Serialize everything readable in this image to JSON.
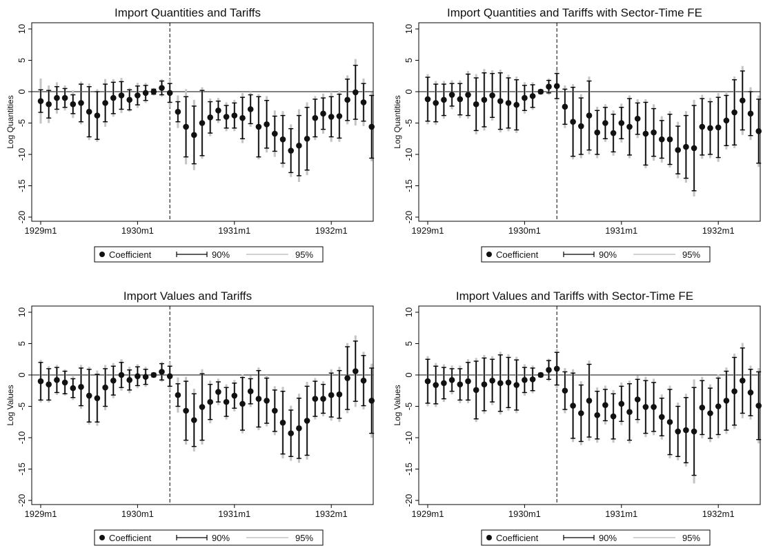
{
  "chart_data": [
    {
      "type": "scatter",
      "title": "Import Quantities and Tariffs",
      "ylabel": "Log Quantities",
      "ylim": [
        -20,
        10
      ],
      "yticks": [
        "10",
        "5",
        "0",
        "-5",
        "-10",
        "-15",
        "-20"
      ],
      "xtick_labels": [
        "1929m1",
        "1930m1",
        "1931m1",
        "1932m1"
      ],
      "event_line_index": 16,
      "zero_line": true,
      "legend": {
        "position": "bottom",
        "items": [
          "Coefficient",
          "90%",
          "95%"
        ]
      },
      "coefficients": [
        -1.5,
        -2.0,
        -1.0,
        -1.0,
        -2.0,
        -1.8,
        -3.2,
        -3.8,
        -1.8,
        -1.0,
        -0.6,
        -1.3,
        -0.6,
        -0.2,
        0.0,
        0.6,
        -0.2,
        -3.2,
        -5.6,
        -6.9,
        -5.0,
        -4.1,
        -3.0,
        -4.0,
        -3.8,
        -4.2,
        -2.8,
        -5.6,
        -5.2,
        -6.7,
        -7.6,
        -9.4,
        -8.6,
        -7.5,
        -4.2,
        -3.5,
        -4.0,
        -3.9,
        -1.3,
        -0.1,
        -1.7,
        -5.6
      ],
      "ci90": [
        1.8,
        2.2,
        1.8,
        1.5,
        1.5,
        3.0,
        4.0,
        3.8,
        3.0,
        2.5,
        2.2,
        1.6,
        1.5,
        1.2,
        0.4,
        1.1,
        1.5,
        1.6,
        4.8,
        4.6,
        5.2,
        2.5,
        1.5,
        1.8,
        2.0,
        3.3,
        2.3,
        4.8,
        3.8,
        2.8,
        3.8,
        3.5,
        4.8,
        5.0,
        3.0,
        2.5,
        3.2,
        3.5,
        3.3,
        4.3,
        3.0,
        5.0
      ],
      "ci95": [
        3.6,
        3.0,
        2.5,
        2.0,
        2.2,
        3.4,
        4.5,
        4.2,
        3.8,
        3.0,
        2.8,
        1.9,
        2.0,
        1.6,
        0.6,
        1.4,
        2.3,
        2.6,
        6.0,
        5.6,
        5.7,
        3.0,
        2.0,
        2.3,
        2.5,
        4.0,
        2.8,
        5.2,
        4.5,
        3.7,
        4.5,
        4.2,
        5.8,
        5.8,
        3.5,
        3.2,
        4.0,
        4.1,
        3.9,
        5.3,
        3.8,
        5.5
      ]
    },
    {
      "type": "scatter",
      "title": "Import Quantities and Tariffs with Sector-Time FE",
      "ylabel": "Log Quantities",
      "ylim": [
        -20,
        10
      ],
      "yticks": [
        "10",
        "5",
        "0",
        "-5",
        "-10",
        "-15",
        "-20"
      ],
      "xtick_labels": [
        "1929m1",
        "1930m1",
        "1931m1",
        "1932m1"
      ],
      "event_line_index": 16,
      "zero_line": true,
      "legend": {
        "position": "bottom",
        "items": [
          "Coefficient",
          "90%",
          "95%"
        ]
      },
      "coefficients": [
        -1.2,
        -1.8,
        -1.3,
        -0.5,
        -1.2,
        -0.5,
        -2.0,
        -1.3,
        -0.6,
        -1.5,
        -1.8,
        -2.1,
        -1.0,
        -0.7,
        0.0,
        0.8,
        0.9,
        -2.4,
        -4.8,
        -5.5,
        -3.8,
        -6.5,
        -5.0,
        -6.6,
        -5.0,
        -5.6,
        -4.3,
        -6.7,
        -6.5,
        -7.6,
        -7.6,
        -9.3,
        -8.8,
        -9.0,
        -5.6,
        -5.8,
        -5.7,
        -4.6,
        -3.3,
        -1.4,
        -3.5,
        -6.3
      ],
      "ci90": [
        3.5,
        3.0,
        2.5,
        1.8,
        2.5,
        3.3,
        4.2,
        4.3,
        3.5,
        4.5,
        4.0,
        4.0,
        2.0,
        1.8,
        0.3,
        1.0,
        2.0,
        2.8,
        5.5,
        4.5,
        5.5,
        3.5,
        2.5,
        3.0,
        2.5,
        4.5,
        2.5,
        5.0,
        3.8,
        3.0,
        4.0,
        3.8,
        5.0,
        6.8,
        4.5,
        4.2,
        4.8,
        4.0,
        5.2,
        4.7,
        3.5,
        5.1
      ],
      "ci95": [
        4.0,
        3.5,
        3.0,
        2.3,
        3.0,
        3.8,
        4.8,
        4.9,
        4.0,
        5.0,
        4.5,
        4.5,
        2.5,
        2.2,
        0.4,
        1.3,
        2.5,
        3.4,
        6.0,
        5.1,
        6.2,
        4.1,
        3.0,
        3.6,
        3.1,
        5.0,
        3.1,
        5.5,
        4.5,
        3.7,
        4.5,
        4.5,
        5.7,
        7.7,
        5.1,
        4.8,
        5.5,
        4.6,
        5.7,
        5.5,
        4.2,
        5.7
      ]
    },
    {
      "type": "scatter",
      "title": "Import Values and Tariffs",
      "ylabel": "Log Values",
      "ylim": [
        -20,
        10
      ],
      "yticks": [
        "10",
        "5",
        "0",
        "-5",
        "-10",
        "-15",
        "-20"
      ],
      "xtick_labels": [
        "1929m1",
        "1930m1",
        "1931m1",
        "1932m1"
      ],
      "event_line_index": 16,
      "zero_line": true,
      "legend": {
        "position": "bottom",
        "items": [
          "Coefficient",
          "90%",
          "95%"
        ]
      },
      "coefficients": [
        -1.0,
        -1.5,
        -0.8,
        -1.2,
        -2.1,
        -1.9,
        -3.3,
        -3.7,
        -2.0,
        -0.9,
        0.0,
        -0.8,
        -0.2,
        -0.3,
        0.0,
        0.5,
        -0.2,
        -3.2,
        -5.7,
        -7.2,
        -5.1,
        -4.3,
        -2.7,
        -4.3,
        -3.3,
        -4.6,
        -2.6,
        -3.8,
        -4.1,
        -5.7,
        -7.6,
        -9.3,
        -8.5,
        -7.3,
        -3.8,
        -3.8,
        -3.2,
        -3.1,
        -0.5,
        0.6,
        -0.9,
        -4.1
      ],
      "ci90": [
        3.0,
        2.5,
        2.0,
        1.8,
        1.5,
        3.0,
        4.2,
        3.8,
        3.0,
        2.3,
        2.0,
        1.6,
        1.5,
        1.2,
        0.3,
        1.3,
        1.6,
        1.8,
        4.7,
        4.2,
        5.3,
        2.8,
        1.6,
        2.3,
        2.0,
        4.2,
        2.0,
        4.5,
        3.6,
        3.3,
        5.0,
        3.7,
        4.8,
        5.5,
        2.8,
        2.3,
        3.5,
        3.8,
        5.0,
        4.8,
        4.0,
        5.2
      ],
      "ci95": [
        3.4,
        2.9,
        2.4,
        2.1,
        1.9,
        3.5,
        4.6,
        4.4,
        3.6,
        2.8,
        2.5,
        2.1,
        1.9,
        1.6,
        0.4,
        1.6,
        2.3,
        2.8,
        5.4,
        5.0,
        6.0,
        3.4,
        2.1,
        2.8,
        2.5,
        4.7,
        2.5,
        5.0,
        4.1,
        3.9,
        5.7,
        4.4,
        5.5,
        6.2,
        3.3,
        2.8,
        4.1,
        4.4,
        5.6,
        5.7,
        4.6,
        5.9
      ]
    },
    {
      "type": "scatter",
      "title": "Import Values and Tariffs with Sector-Time FE",
      "ylabel": "Log Values",
      "ylim": [
        -20,
        10
      ],
      "yticks": [
        "10",
        "5",
        "0",
        "-5",
        "-10",
        "-15",
        "-20"
      ],
      "xtick_labels": [
        "1929m1",
        "1930m1",
        "1931m1",
        "1932m1"
      ],
      "event_line_index": 16,
      "zero_line": true,
      "legend": {
        "position": "bottom",
        "items": [
          "Coefficient",
          "90%",
          "95%"
        ]
      },
      "coefficients": [
        -1.0,
        -1.6,
        -1.3,
        -0.8,
        -1.5,
        -1.0,
        -2.4,
        -1.5,
        -0.9,
        -1.3,
        -1.2,
        -1.6,
        -0.8,
        -0.7,
        0.0,
        0.8,
        1.0,
        -2.5,
        -4.9,
        -6.1,
        -4.1,
        -6.4,
        -4.8,
        -6.6,
        -4.6,
        -5.9,
        -3.9,
        -5.1,
        -5.1,
        -6.7,
        -7.5,
        -9.0,
        -8.8,
        -9.0,
        -5.2,
        -6.1,
        -5.0,
        -4.1,
        -2.6,
        -0.9,
        -2.8,
        -4.9
      ],
      "ci90": [
        3.5,
        3.0,
        2.5,
        1.8,
        2.5,
        3.0,
        4.6,
        4.2,
        3.4,
        4.5,
        4.0,
        4.0,
        2.0,
        1.8,
        0.3,
        1.5,
        2.6,
        3.0,
        5.2,
        4.5,
        5.8,
        3.8,
        2.5,
        3.6,
        2.8,
        4.5,
        3.2,
        4.2,
        3.9,
        3.0,
        5.2,
        4.0,
        5.2,
        7.0,
        4.3,
        4.0,
        4.5,
        4.7,
        5.4,
        5.2,
        3.7,
        5.4
      ],
      "ci95": [
        4.0,
        3.5,
        3.0,
        2.3,
        3.0,
        3.5,
        5.1,
        4.7,
        3.9,
        5.0,
        4.5,
        4.5,
        2.5,
        2.2,
        0.4,
        1.8,
        3.1,
        3.6,
        5.8,
        5.1,
        6.4,
        4.4,
        3.1,
        4.2,
        3.4,
        5.0,
        3.8,
        4.8,
        4.5,
        3.6,
        5.8,
        4.6,
        5.8,
        8.3,
        4.9,
        4.6,
        5.1,
        5.3,
        6.0,
        6.0,
        4.3,
        6.0
      ]
    }
  ]
}
